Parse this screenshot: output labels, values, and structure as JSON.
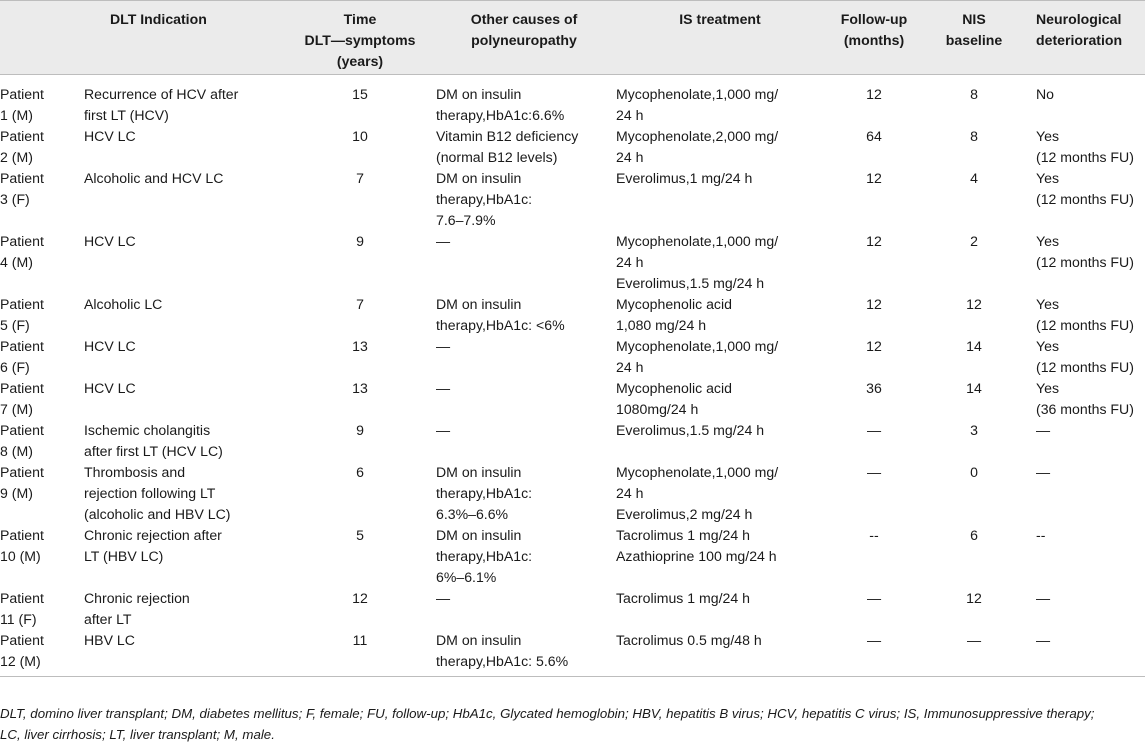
{
  "table": {
    "headers": [
      "",
      "DLT Indication",
      "Time\nDLT—symptoms\n(years)",
      "Other causes of\npolyneuropathy",
      "IS treatment",
      "Follow-up\n(months)",
      "NIS\nbaseline",
      "Neurological\ndeterioration"
    ],
    "rows": [
      [
        "Patient\n1 (M)",
        "Recurrence of HCV after\nfirst LT (HCV)",
        "15",
        "DM on insulin\ntherapy,HbA1c:6.6%",
        "Mycophenolate,1,000 mg/\n24 h",
        "12",
        "8",
        "No"
      ],
      [
        "Patient\n2 (M)",
        "HCV LC",
        "10",
        "Vitamin B12 deficiency\n(normal B12 levels)",
        "Mycophenolate,2,000 mg/\n24 h",
        "64",
        "8",
        "Yes\n(12 months FU)"
      ],
      [
        "Patient\n3 (F)",
        "Alcoholic and HCV LC",
        "7",
        "DM on insulin\ntherapy,HbA1c:\n7.6–7.9%",
        "Everolimus,1 mg/24 h",
        "12",
        "4",
        "Yes\n(12 months FU)"
      ],
      [
        "Patient\n4 (M)",
        "HCV LC",
        "9",
        "—",
        "Mycophenolate,1,000 mg/\n24 h\nEverolimus,1.5 mg/24 h",
        "12",
        "2",
        "Yes\n(12 months FU)"
      ],
      [
        "Patient\n5 (F)",
        "Alcoholic LC",
        "7",
        "DM on insulin\ntherapy,HbA1c: <6%",
        "Mycophenolic acid\n1,080 mg/24 h",
        "12",
        "12",
        "Yes\n(12 months FU)"
      ],
      [
        "Patient\n6 (F)",
        "HCV LC",
        "13",
        "—",
        "Mycophenolate,1,000 mg/\n24 h",
        "12",
        "14",
        "Yes\n(12 months FU)"
      ],
      [
        "Patient\n7 (M)",
        "HCV LC",
        "13",
        "—",
        "Mycophenolic acid\n1080mg/24 h",
        "36",
        "14",
        "Yes\n(36 months FU)"
      ],
      [
        "Patient\n8 (M)",
        "Ischemic cholangitis\nafter first LT (HCV LC)",
        "9",
        "—",
        "Everolimus,1.5 mg/24 h",
        "—",
        "3",
        "—"
      ],
      [
        "Patient\n9 (M)",
        "Thrombosis and\nrejection following LT\n(alcoholic and HBV LC)",
        "6",
        "DM on insulin\ntherapy,HbA1c:\n6.3%–6.6%",
        "Mycophenolate,1,000 mg/\n24 h\nEverolimus,2 mg/24 h",
        "—",
        "0",
        "—"
      ],
      [
        "Patient\n10 (M)",
        "Chronic rejection after\nLT (HBV LC)",
        "5",
        "DM on insulin\ntherapy,HbA1c:\n6%–6.1%",
        "Tacrolimus 1 mg/24 h\nAzathioprine 100 mg/24 h",
        "--",
        "6",
        "--"
      ],
      [
        "Patient\n11 (F)",
        "Chronic rejection\nafter LT",
        "12",
        "—",
        "Tacrolimus 1 mg/24 h",
        "—",
        "12",
        "—"
      ],
      [
        "Patient\n12 (M)",
        "HBV LC",
        "11",
        "DM on insulin\ntherapy,HbA1c: 5.6%",
        "Tacrolimus 0.5 mg/48 h",
        "—",
        "—",
        "—"
      ]
    ]
  },
  "footnote": "DLT, domino liver transplant; DM, diabetes mellitus; F, female; FU, follow-up; HbA1c, Glycated hemoglobin; HBV, hepatitis B virus; HCV, hepatitis C virus; IS, Immunosuppressive therapy;\nLC, liver cirrhosis; LT, liver transplant; M, male."
}
